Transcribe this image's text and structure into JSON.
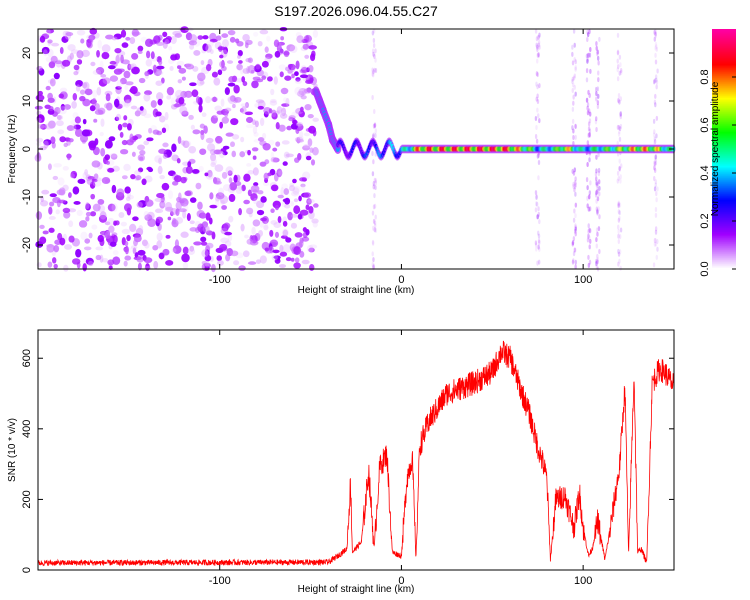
{
  "title": "S197.2026.096.04.55.C27",
  "chart_data": [
    {
      "type": "heatmap",
      "xlabel": "Height of straight line (km)",
      "ylabel": "Frequency (Hz)",
      "xlim": [
        -200,
        150
      ],
      "ylim": [
        -25,
        25
      ],
      "xticks": [
        -100,
        0,
        100
      ],
      "yticks": [
        -20,
        -10,
        0,
        10,
        20
      ],
      "colorbar": {
        "label": "Normalized spectral amplitude",
        "range": [
          0,
          1
        ],
        "ticks": [
          0.0,
          0.2,
          0.4,
          0.6,
          0.8
        ],
        "colormap": [
          "#ffffff",
          "#a000ff",
          "#0000ff",
          "#00ffff",
          "#00ff00",
          "#ffff00",
          "#ff0000",
          "#ff00a0"
        ]
      },
      "features": [
        {
          "region": "noise",
          "x_range": [
            -200,
            -47
          ],
          "y_range": [
            -25,
            25
          ],
          "amplitude": 0.05
        },
        {
          "region": "drift",
          "points": [
            [
              -47,
              12
            ],
            [
              -45,
              10
            ],
            [
              -43,
              8
            ],
            [
              -40,
              5
            ],
            [
              -38,
              2
            ],
            [
              -35,
              0
            ]
          ],
          "amplitude": 0.35
        },
        {
          "region": "carrier",
          "x_range": [
            -35,
            150
          ],
          "y": 0,
          "amplitude_profile": [
            [
              -35,
              0.25
            ],
            [
              -25,
              0.3
            ],
            [
              -15,
              0.35
            ],
            [
              -10,
              0.4
            ],
            [
              0,
              0.45
            ],
            [
              5,
              0.6
            ],
            [
              10,
              0.9
            ],
            [
              50,
              0.95
            ],
            [
              60,
              0.9
            ],
            [
              70,
              0.7
            ],
            [
              75,
              0.5
            ],
            [
              85,
              0.6
            ],
            [
              90,
              0.85
            ],
            [
              100,
              0.5
            ],
            [
              110,
              0.6
            ],
            [
              120,
              0.7
            ],
            [
              130,
              0.85
            ],
            [
              140,
              0.8
            ],
            [
              150,
              0.5
            ]
          ]
        }
      ]
    },
    {
      "type": "line",
      "xlabel": "Height of straight line (km)",
      "ylabel": "SNR (10 * v/v)",
      "xlim": [
        -200,
        150
      ],
      "ylim": [
        0,
        680
      ],
      "xticks": [
        -100,
        0,
        100
      ],
      "yticks": [
        0,
        200,
        400,
        600
      ],
      "series": [
        {
          "color": "#ff0000",
          "envelope": [
            [
              -200,
              20
            ],
            [
              -40,
              22
            ],
            [
              -35,
              40
            ],
            [
              -30,
              60
            ],
            [
              -28,
              250
            ],
            [
              -27,
              50
            ],
            [
              -22,
              80
            ],
            [
              -18,
              280
            ],
            [
              -15,
              60
            ],
            [
              -12,
              290
            ],
            [
              -8,
              330
            ],
            [
              -5,
              50
            ],
            [
              0,
              40
            ],
            [
              3,
              260
            ],
            [
              6,
              320
            ],
            [
              8,
              30
            ],
            [
              10,
              350
            ],
            [
              15,
              420
            ],
            [
              20,
              460
            ],
            [
              25,
              500
            ],
            [
              30,
              510
            ],
            [
              40,
              530
            ],
            [
              50,
              560
            ],
            [
              55,
              620
            ],
            [
              60,
              600
            ],
            [
              65,
              520
            ],
            [
              70,
              450
            ],
            [
              75,
              350
            ],
            [
              78,
              300
            ],
            [
              80,
              260
            ],
            [
              82,
              30
            ],
            [
              85,
              200
            ],
            [
              90,
              210
            ],
            [
              95,
              120
            ],
            [
              98,
              220
            ],
            [
              100,
              120
            ],
            [
              103,
              40
            ],
            [
              105,
              60
            ],
            [
              108,
              140
            ],
            [
              112,
              30
            ],
            [
              115,
              120
            ],
            [
              120,
              290
            ],
            [
              123,
              520
            ],
            [
              125,
              40
            ],
            [
              128,
              560
            ],
            [
              130,
              50
            ],
            [
              132,
              60
            ],
            [
              135,
              20
            ],
            [
              138,
              530
            ],
            [
              142,
              570
            ],
            [
              145,
              560
            ],
            [
              150,
              520
            ]
          ],
          "noise": 25
        }
      ]
    }
  ]
}
